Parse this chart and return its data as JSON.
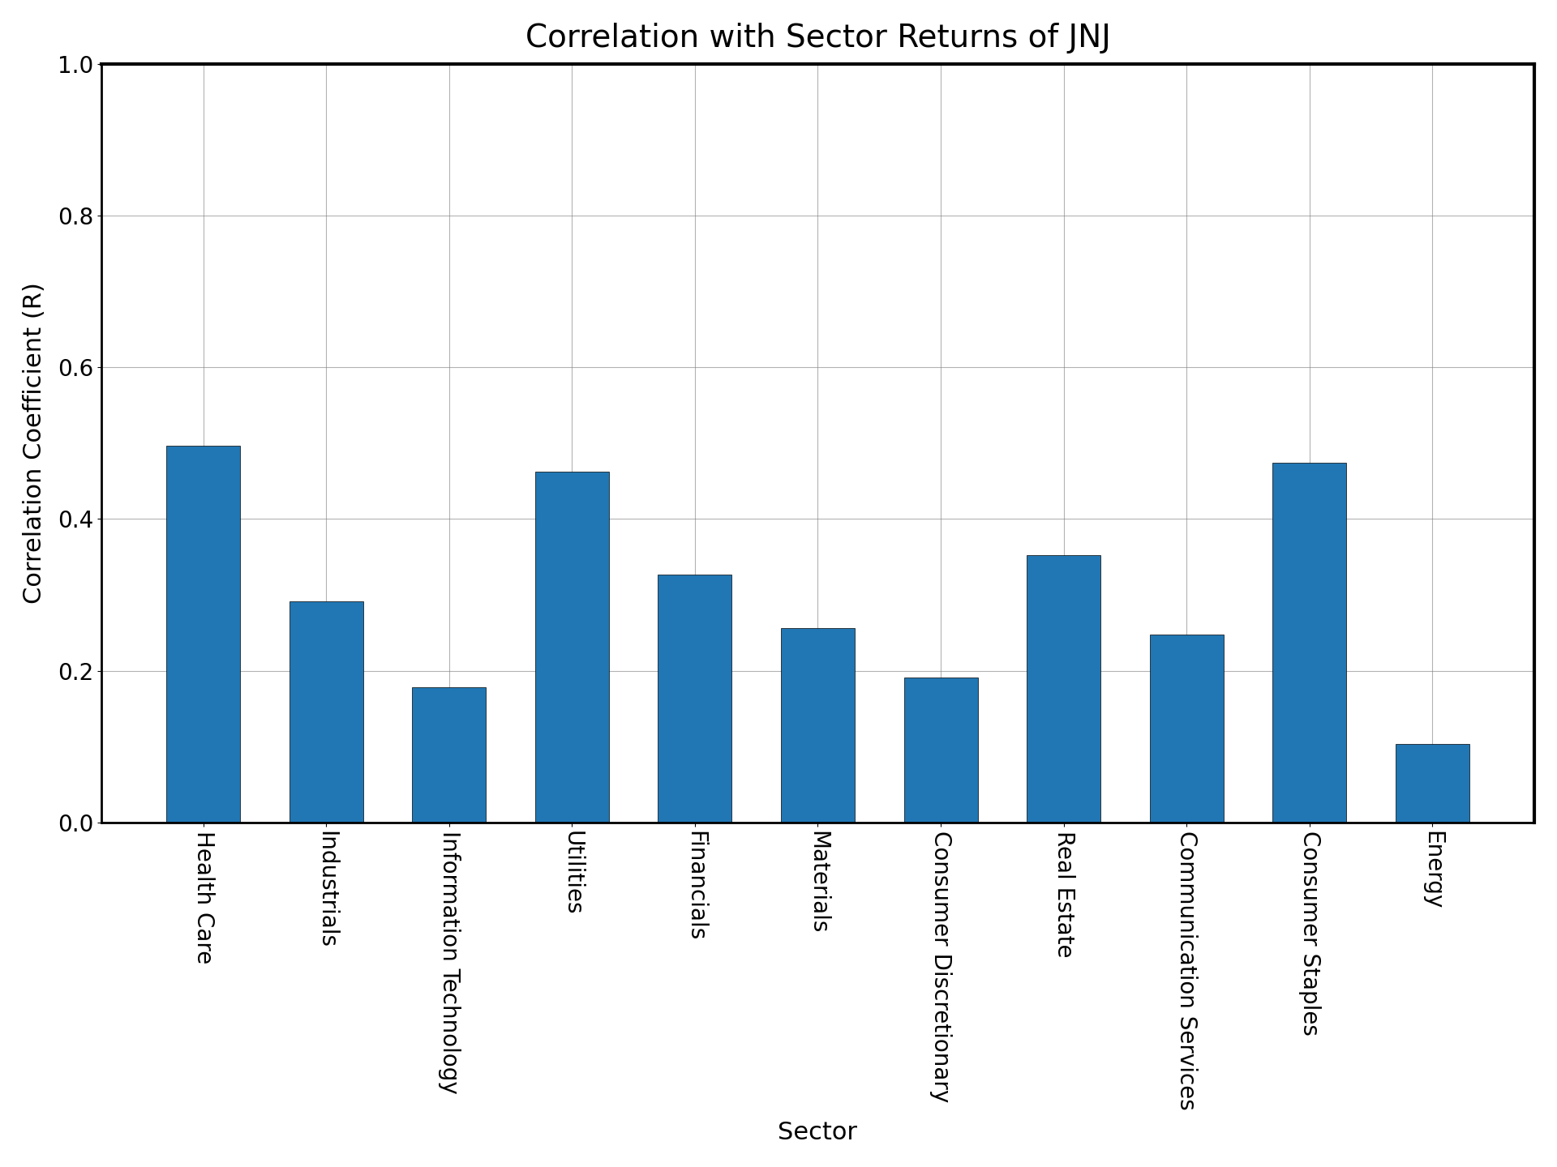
{
  "title": "Correlation with Sector Returns of JNJ",
  "xlabel": "Sector",
  "ylabel": "Correlation Coefficient (R)",
  "categories": [
    "Health Care",
    "Industrials",
    "Information Technology",
    "Utilities",
    "Financials",
    "Materials",
    "Consumer Discretionary",
    "Real Estate",
    "Communication Services",
    "Consumer Staples",
    "Energy"
  ],
  "values": [
    0.496,
    0.291,
    0.178,
    0.462,
    0.327,
    0.256,
    0.191,
    0.352,
    0.248,
    0.474,
    0.103
  ],
  "bar_color": "#2077b4",
  "ylim": [
    0.0,
    1.0
  ],
  "yticks": [
    0.0,
    0.2,
    0.4,
    0.6,
    0.8,
    1.0
  ],
  "title_fontsize": 28,
  "label_fontsize": 22,
  "tick_fontsize": 20
}
